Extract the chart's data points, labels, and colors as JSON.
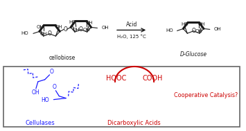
{
  "bg_color": "#ffffff",
  "blue_color": "#1a1aff",
  "red_color": "#cc0000",
  "black_color": "#1a1a1a",
  "acid_label": "Acid",
  "conditions_label": "H₂O, 125 °C",
  "cellobiose_label": "cellobiose",
  "glucose_label": "D-Glucose",
  "hooc_label": "HOOC",
  "cooh_label": "COOH",
  "cooperative_label": "Cooperative Catalysis?",
  "cellulases_label": "Cellulases",
  "dicarboxylic_label": "Dicarboxylic Acids"
}
